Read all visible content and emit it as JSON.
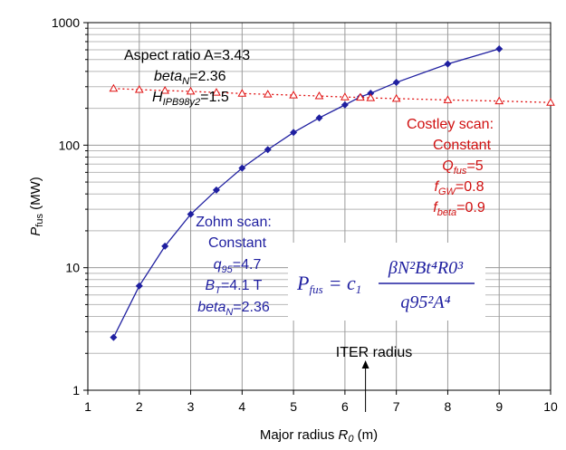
{
  "chart_data": {
    "type": "line",
    "xlabel_main": "Major radius ",
    "xlabel_sym": "R",
    "xlabel_sub": "0",
    "xlabel_unit": " (m)",
    "ylabel_sym": "P",
    "ylabel_sub": "fus",
    "ylabel_unit": " (MW)",
    "xlim": [
      1,
      10
    ],
    "ylim": [
      1,
      1000
    ],
    "yscale": "log",
    "x_ticks": [
      "1",
      "2",
      "3",
      "4",
      "5",
      "6",
      "7",
      "8",
      "9",
      "10"
    ],
    "y_ticks": [
      "1",
      "10",
      "100",
      "1000"
    ],
    "grid": true,
    "series": [
      {
        "key": "zohm",
        "color": "#1f1fa0",
        "marker": "diamond",
        "line": "solid",
        "x": [
          1.5,
          2,
          2.5,
          3,
          3.5,
          4,
          4.5,
          5,
          5.5,
          6,
          6.3,
          6.5,
          7,
          8,
          9
        ],
        "y": [
          2.7,
          7.1,
          15,
          27.3,
          43,
          65,
          92,
          127,
          167,
          213,
          248,
          265,
          325,
          460,
          610
        ]
      },
      {
        "key": "costley",
        "color": "#e01010",
        "marker": "triangle",
        "line": "dotted",
        "x": [
          1.5,
          2,
          2.5,
          3,
          3.5,
          4,
          4.5,
          5,
          5.5,
          6,
          6.3,
          6.5,
          7,
          8,
          9,
          10
        ],
        "y": [
          290,
          284,
          279,
          275,
          269,
          264,
          260,
          256,
          252,
          247,
          245,
          243,
          240,
          234,
          229,
          223
        ]
      }
    ],
    "annotations": {
      "aspect_ratio": "Aspect ratio A=3.43",
      "betaN_main": "beta",
      "betaN_sub": "N",
      "betaN_val": "=2.36",
      "h_main": "H",
      "h_sub": "IPB98y2",
      "h_val": "=1.5",
      "costley_title": "Costley scan:",
      "costley_constant": "Constant",
      "q_fus_main": "Q",
      "q_fus_sub": "fus",
      "q_fus_val": "=5",
      "f_gw_main": "f",
      "f_gw_sub": "GW",
      "f_gw_val": "=0.8",
      "f_beta_main": "f",
      "f_beta_sub": "beta",
      "f_beta_val": "=0.9",
      "zohm_title": "Zohm scan:",
      "zohm_constant": "Constant",
      "q95_main": "q",
      "q95_sub": "95",
      "q95_val": "=4.7",
      "bt_main": "B",
      "bt_sub": "T",
      "bt_val": "=4.1 T",
      "zbeta_main": "beta",
      "zbeta_sub": "N",
      "zbeta_val": "=2.36",
      "iter_label": "ITER radius",
      "iter_x": 6.4,
      "formula_lhs": "P",
      "formula_lhs_sub": "fus",
      "formula_eq": "= c",
      "formula_c_sub": "1",
      "formula_num": "βN²Bt⁴R0³",
      "formula_den": "q95²A⁴"
    }
  }
}
